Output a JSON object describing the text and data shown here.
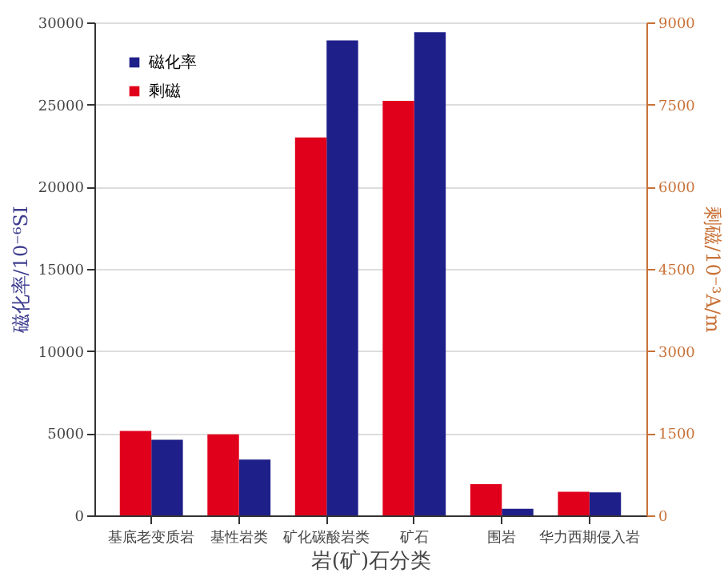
{
  "chart_data": {
    "type": "bar",
    "xlabel": "岩(矿)石分类",
    "ylabel": "磁化率/10⁻⁶SI",
    "y2label": "剩磁/10⁻³A/m",
    "categories": [
      "基底老变质岩",
      "基性岩类",
      "矿化碳酸岩类",
      "矿石",
      "围岩",
      "华力西期侵入岩"
    ],
    "series": [
      {
        "name": "磁化率",
        "color": "#1f1f8a",
        "values": [
          4600,
          3400,
          28900,
          29400,
          400,
          1400
        ]
      },
      {
        "name": "剩磁",
        "color": "#e0001b",
        "axis": "y2",
        "values": [
          1540,
          1480,
          6900,
          7570,
          570,
          430
        ]
      }
    ],
    "ylim": [
      0,
      30000
    ],
    "yticks": [
      0,
      5000,
      10000,
      15000,
      20000,
      25000,
      30000
    ],
    "y2lim": [
      0,
      9000
    ],
    "y2ticks": [
      0,
      1500,
      3000,
      4500,
      6000,
      7500,
      9000
    ],
    "grid": "y",
    "legend": "top left"
  }
}
